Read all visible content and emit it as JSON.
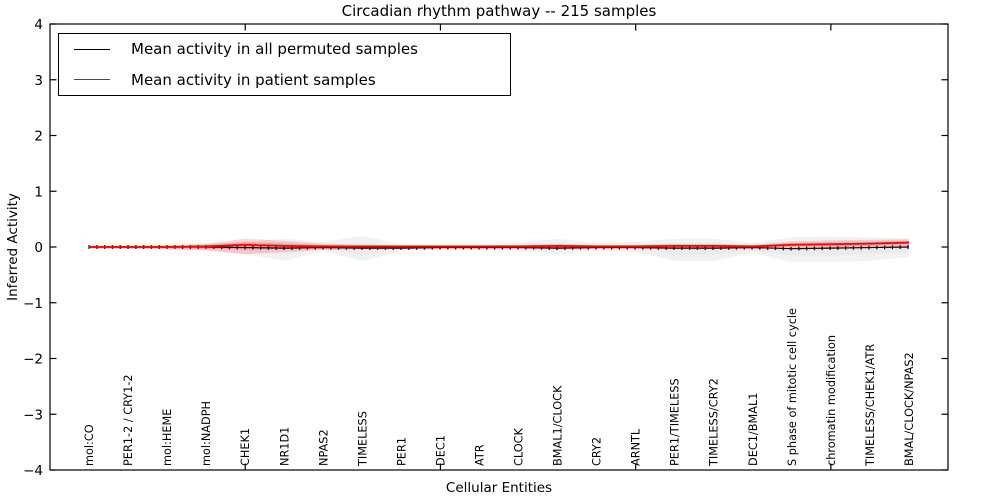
{
  "window": {
    "kind": "matplotlib-figure"
  },
  "chart_data": {
    "type": "line",
    "title": "Circadian rhythm pathway -- 215 samples",
    "xlabel": "Cellular Entities",
    "ylabel": "Inferred Activity",
    "ylim": [
      -4,
      4
    ],
    "yticks": [
      -4,
      -3,
      -2,
      -1,
      0,
      1,
      2,
      3,
      4
    ],
    "xtick_positions": [
      5,
      10,
      15,
      20
    ],
    "grid": false,
    "legend_position": "upper left",
    "background": "#ffffff",
    "categories": [
      "mol:CO",
      "PER1-2 / CRY1-2",
      "mol:HEME",
      "mol:NADPH",
      "CHEK1",
      "NR1D1",
      "NPAS2",
      "TIMELESS",
      "PER1",
      "DEC1",
      "ATR",
      "CLOCK",
      "BMAL1/CLOCK",
      "CRY2",
      "ARNTL",
      "PER1/TIMELESS",
      "TIMELESS/CRY2",
      "DEC1/BMAL1",
      "S phase of mitotic cell cycle",
      "chromatin modification",
      "TIMELESS/CHEK1/ATR",
      "BMAL/CLOCK/NPAS2"
    ],
    "series": [
      {
        "name": "Mean activity in all permuted samples",
        "color": "#000000",
        "band_color": "#999999",
        "marker": "tick",
        "values": [
          0.0,
          0.0,
          0.0,
          0.0,
          -0.01,
          -0.02,
          -0.01,
          -0.02,
          -0.02,
          -0.01,
          -0.01,
          -0.01,
          -0.02,
          -0.01,
          -0.01,
          -0.02,
          -0.02,
          -0.01,
          -0.03,
          -0.02,
          -0.01,
          0.0
        ],
        "band_upper": [
          0.04,
          0.04,
          0.04,
          0.06,
          0.09,
          0.15,
          0.09,
          0.2,
          0.05,
          0.05,
          0.05,
          0.07,
          0.15,
          0.07,
          0.09,
          0.15,
          0.15,
          0.07,
          0.18,
          0.18,
          0.18,
          0.15
        ],
        "band_lower": [
          -0.04,
          -0.04,
          -0.05,
          -0.06,
          -0.13,
          -0.25,
          -0.07,
          -0.25,
          -0.07,
          -0.05,
          -0.06,
          -0.07,
          -0.13,
          -0.07,
          -0.09,
          -0.25,
          -0.25,
          -0.11,
          -0.27,
          -0.27,
          -0.25,
          -0.18
        ]
      },
      {
        "name": "Mean activity in patient samples",
        "color": "#ff0000",
        "band_color": "#ff0000",
        "marker": "none",
        "values": [
          0.0,
          0.0,
          0.0,
          0.01,
          0.04,
          0.02,
          0.01,
          0.01,
          0.01,
          0.01,
          0.01,
          0.01,
          0.02,
          0.01,
          0.01,
          0.02,
          0.02,
          0.01,
          0.04,
          0.05,
          0.06,
          0.08
        ],
        "band_upper": [
          0.02,
          0.02,
          0.03,
          0.06,
          0.15,
          0.11,
          0.06,
          0.04,
          0.03,
          0.03,
          0.03,
          0.04,
          0.06,
          0.04,
          0.04,
          0.06,
          0.06,
          0.04,
          0.1,
          0.12,
          0.13,
          0.14
        ],
        "band_lower": [
          -0.03,
          -0.03,
          -0.04,
          -0.06,
          -0.13,
          -0.09,
          -0.05,
          -0.04,
          -0.03,
          -0.03,
          -0.03,
          -0.03,
          -0.04,
          -0.03,
          -0.03,
          -0.04,
          -0.04,
          -0.03,
          -0.02,
          -0.01,
          0.0,
          0.02
        ]
      }
    ]
  }
}
